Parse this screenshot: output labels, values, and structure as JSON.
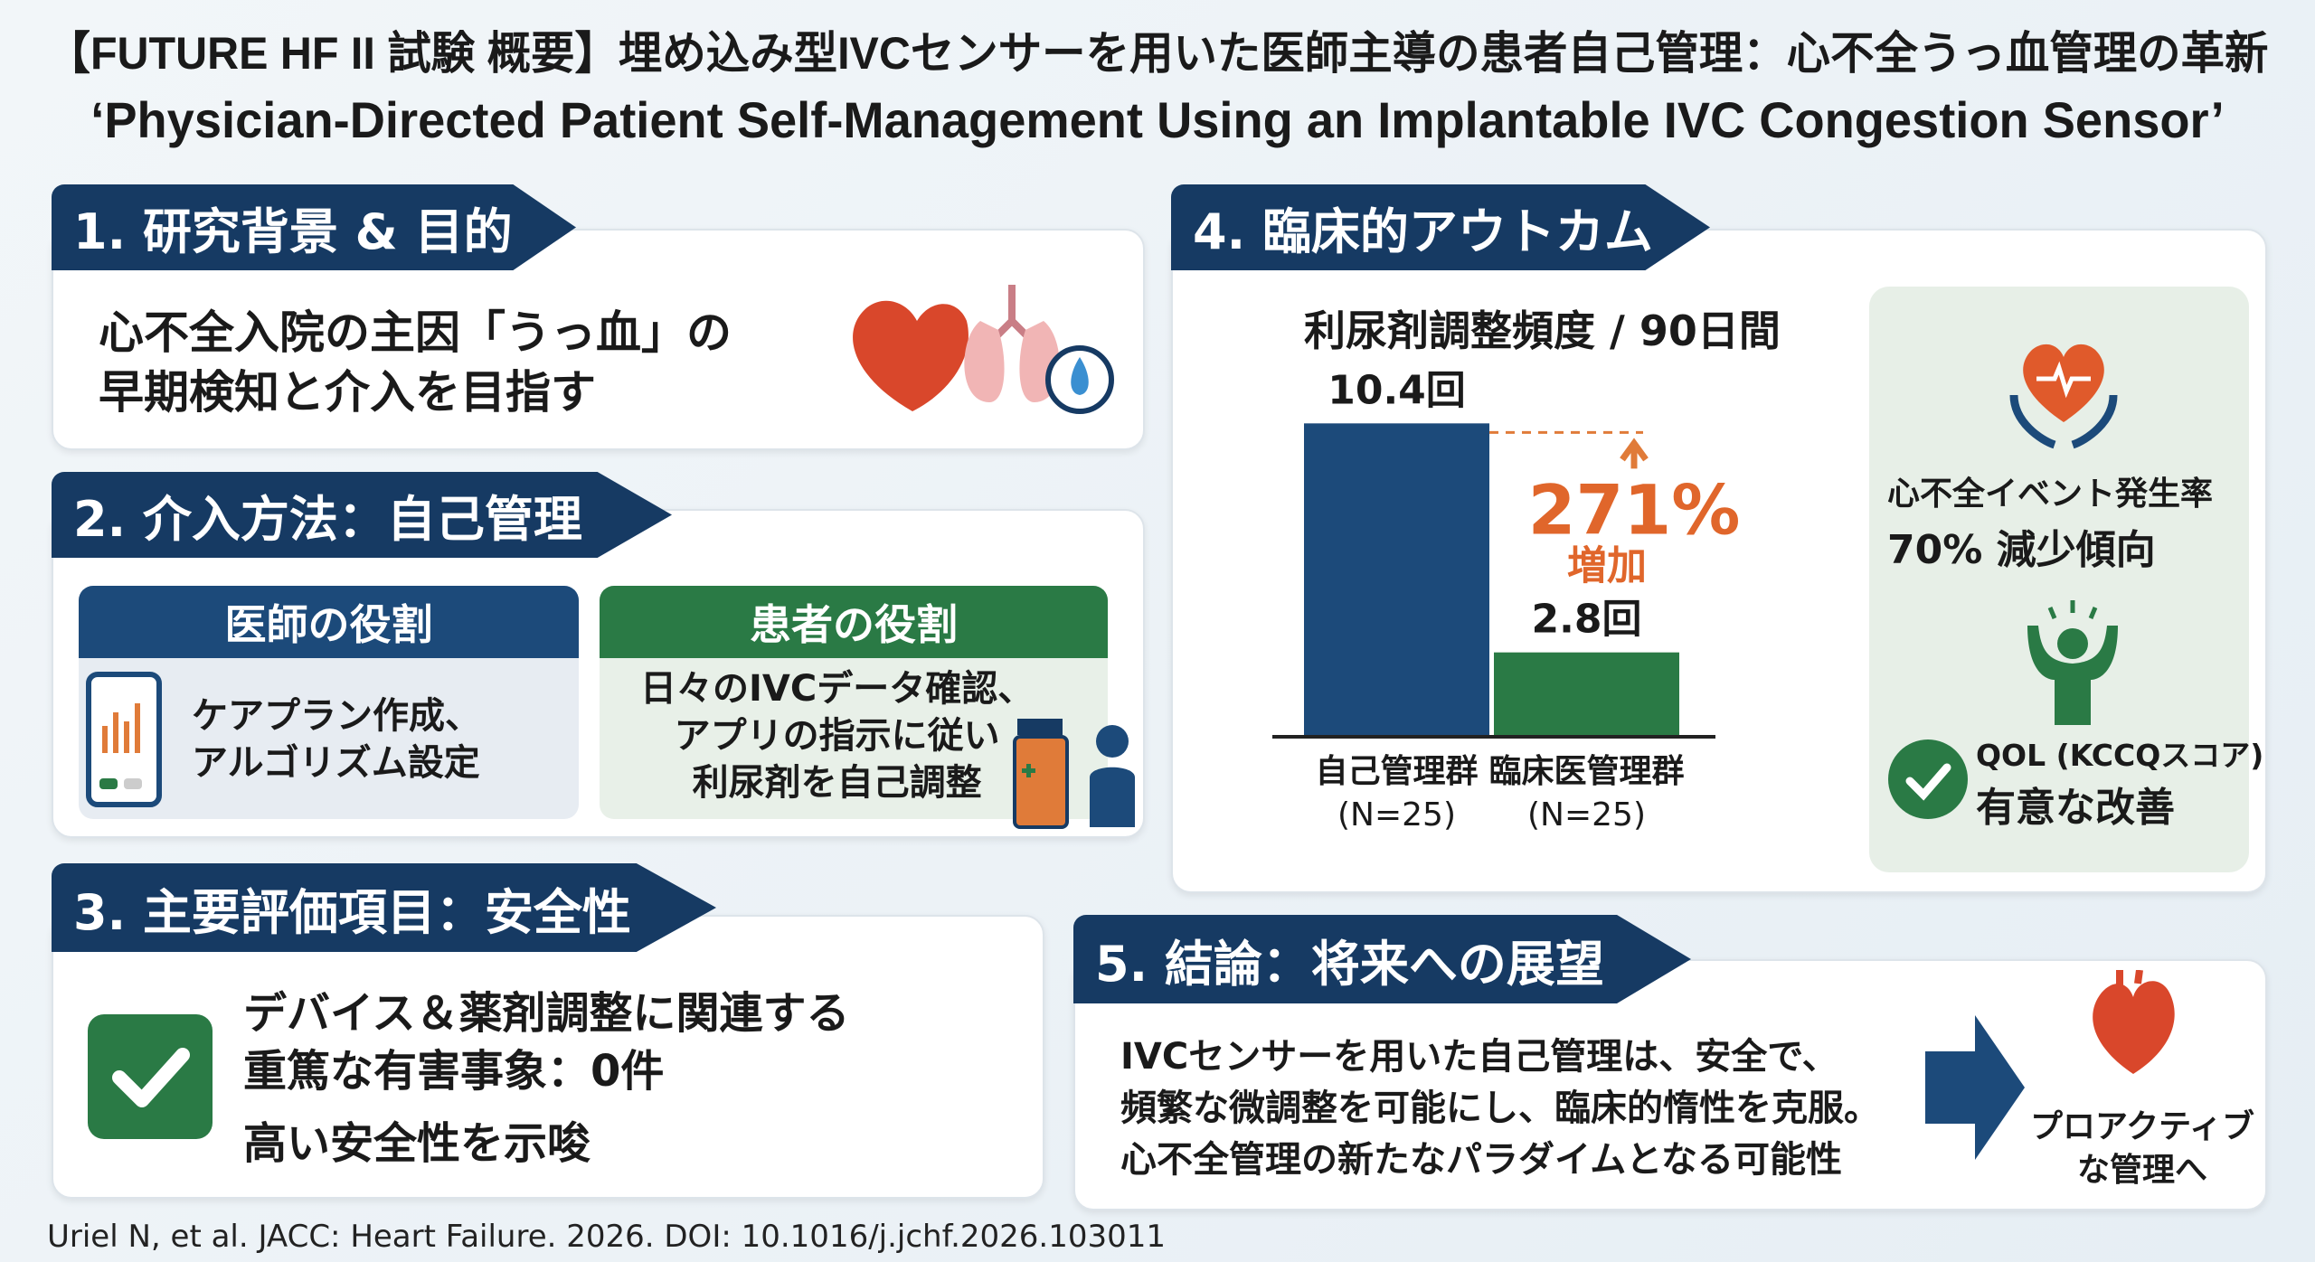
{
  "title": {
    "jp": "【FUTURE HF II 試験 概要】埋め込み型IVCセンサーを用いた医師主導の患者自己管理：心不全うっ血管理の革新",
    "en": "‘Physician-Directed Patient Self-Management Using an Implantable IVC Congestion Sensor’"
  },
  "s1": {
    "header": "1. 研究背景 & 目的",
    "line1": "心不全入院の主因「うっ血」の",
    "line2": "早期検知と介入を目指す"
  },
  "s2": {
    "header": "2. 介入方法：自己管理",
    "doctor": {
      "title": "医師の役割",
      "line1": "ケアプラン作成、",
      "line2": "アルゴリズム設定"
    },
    "patient": {
      "title": "患者の役割",
      "line1": "日々のIVCデータ確認、",
      "line2": "アプリの指示に従い",
      "line3": "利尿剤を自己調整"
    }
  },
  "s3": {
    "header": "3. 主要評価項目：安全性",
    "line1": "デバイス＆薬剤調整に関連する",
    "line2": "重篤な有害事象：0件",
    "line3": "高い安全性を示唆"
  },
  "s4": {
    "header": "4. 臨床的アウトカム",
    "event_label": "心不全イベント発生率",
    "event_value": "70% 減少傾向",
    "qol_label": "QOL (KCCQスコア)",
    "qol_value": "有意な改善"
  },
  "chart_data": {
    "type": "bar",
    "title": "利尿剤調整頻度 / 90日間",
    "categories": [
      "自己管理群",
      "臨床医管理群"
    ],
    "sublabels": [
      "(N=25)",
      "(N=25)"
    ],
    "values": [
      10.4,
      2.8
    ],
    "value_labels": [
      "10.4回",
      "2.8回"
    ],
    "colors": [
      "#1c4a7a",
      "#2a7a45"
    ],
    "ylim": [
      0,
      12
    ],
    "annotation": {
      "value": "271%",
      "label": "増加"
    }
  },
  "s5": {
    "header": "5. 結論：将来への展望",
    "line1": "IVCセンサーを用いた自己管理は、安全で、",
    "line2": "頻繁な微調整を可能にし、臨床的惰性を克服。",
    "line3": "心不全管理の新たなパラダイムとなる可能性",
    "outcome1": "プロアクティブ",
    "outcome2": "な管理へ"
  },
  "citation": "Uriel N, et al. JACC: Heart Failure. 2026. DOI: 10.1016/j.jchf.2026.103011"
}
